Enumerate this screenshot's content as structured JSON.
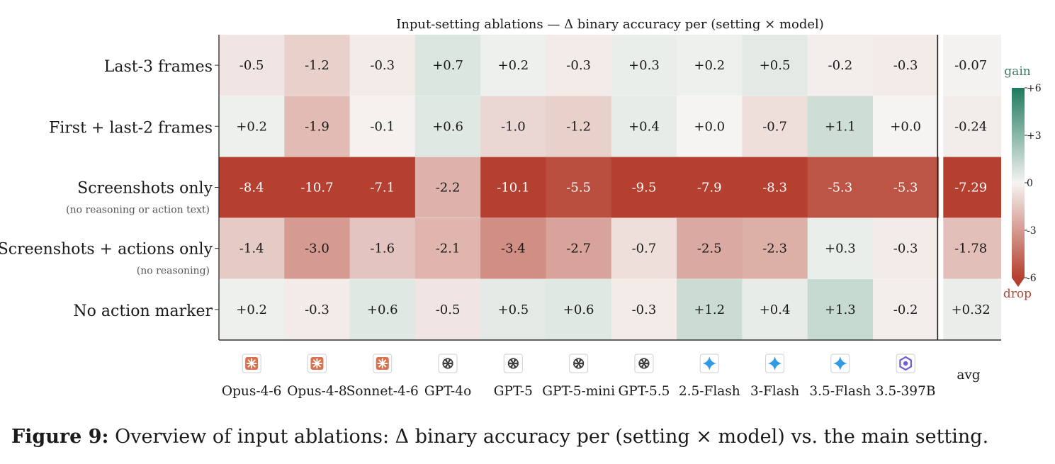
{
  "chart_data": {
    "type": "heatmap",
    "title": "Input-setting ablations — Δ binary accuracy per (setting × model)",
    "rows": [
      {
        "label": "Last-3 frames",
        "sublabel": ""
      },
      {
        "label": "First + last-2 frames",
        "sublabel": ""
      },
      {
        "label": "Screenshots only",
        "sublabel": "(no reasoning or action text)"
      },
      {
        "label": "Screenshots + actions only",
        "sublabel": "(no reasoning)"
      },
      {
        "label": "No action marker",
        "sublabel": ""
      }
    ],
    "columns": [
      {
        "name": "Opus-4-6",
        "icon": "claude-icon"
      },
      {
        "name": "Opus-4-8",
        "icon": "claude-icon"
      },
      {
        "name": "Sonnet-4-6",
        "icon": "claude-icon"
      },
      {
        "name": "GPT-4o",
        "icon": "openai-icon"
      },
      {
        "name": "GPT-5",
        "icon": "openai-icon"
      },
      {
        "name": "GPT-5-mini",
        "icon": "openai-icon"
      },
      {
        "name": "GPT-5.5",
        "icon": "openai-icon"
      },
      {
        "name": "2.5-Flash",
        "icon": "gemini-icon"
      },
      {
        "name": "3-Flash",
        "icon": "gemini-icon"
      },
      {
        "name": "3.5-Flash",
        "icon": "gemini-icon"
      },
      {
        "name": "3.5-397B",
        "icon": "qwen-icon"
      }
    ],
    "values": [
      [
        -0.5,
        -1.2,
        -0.3,
        0.7,
        0.2,
        -0.3,
        0.3,
        0.2,
        0.5,
        -0.2,
        -0.3
      ],
      [
        0.2,
        -1.9,
        -0.1,
        0.6,
        -1.0,
        -1.2,
        0.4,
        0.0,
        -0.7,
        1.1,
        0.0
      ],
      [
        -8.4,
        -10.7,
        -7.1,
        -2.2,
        -10.1,
        -5.5,
        -9.5,
        -7.9,
        -8.3,
        -5.3,
        -5.3
      ],
      [
        -1.4,
        -3.0,
        -1.6,
        -2.1,
        -3.4,
        -2.7,
        -0.7,
        -2.5,
        -2.3,
        0.3,
        -0.3
      ],
      [
        0.2,
        -0.3,
        0.6,
        -0.5,
        0.5,
        0.6,
        -0.3,
        1.2,
        0.4,
        1.3,
        -0.2
      ]
    ],
    "avg_label": "avg",
    "avg_values": [
      -0.07,
      -0.24,
      -7.29,
      -1.78,
      0.32
    ],
    "colorbar": {
      "range": [
        -6,
        6
      ],
      "ticks": [
        6,
        3,
        0,
        -3,
        -6
      ],
      "tick_labels": [
        "+6",
        "+3",
        "0",
        "-3",
        "-6"
      ],
      "top_label": "gain",
      "bottom_label": "drop",
      "extend": "min"
    },
    "colors": {
      "negative": "#b5402f",
      "neutral": "#f5f4f2",
      "positive": "#1e7a5e",
      "gain_label": "#3d7a66",
      "drop_label": "#b04a36",
      "claude_icon": "#d9714f",
      "gemini_icon": "#2f9be6",
      "qwen_icon": "#6b5fd9"
    }
  },
  "caption": {
    "lead": "Figure 9:",
    "text": " Overview of input ablations: Δ binary accuracy per (setting × model) vs. the main setting."
  }
}
